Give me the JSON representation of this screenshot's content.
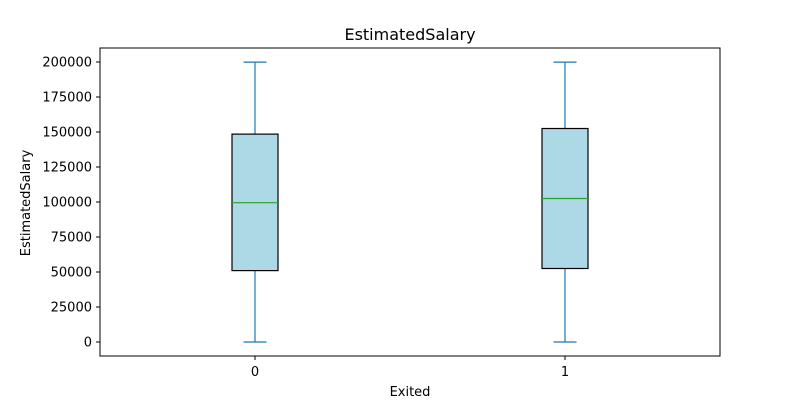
{
  "chart_data": {
    "type": "box",
    "title": "EstimatedSalary",
    "xlabel": "Exited",
    "ylabel": "EstimatedSalary",
    "categories": [
      "0",
      "1"
    ],
    "boxes": [
      {
        "category": "0",
        "whisker_low": 0,
        "q1": 51000,
        "median": 99500,
        "q3": 148500,
        "whisker_high": 199900
      },
      {
        "category": "1",
        "whisker_low": 0,
        "q1": 52500,
        "median": 102500,
        "q3": 152500,
        "whisker_high": 199900
      }
    ],
    "yticks": [
      0,
      25000,
      50000,
      75000,
      100000,
      125000,
      150000,
      175000,
      200000
    ],
    "ylim": [
      -10000,
      210000
    ],
    "grid": false,
    "colors": {
      "box_fill": "#add8e6",
      "box_edge": "#000000",
      "whisker": "#1f77b4",
      "median": "#2ca02c",
      "frame": "#000000"
    }
  }
}
